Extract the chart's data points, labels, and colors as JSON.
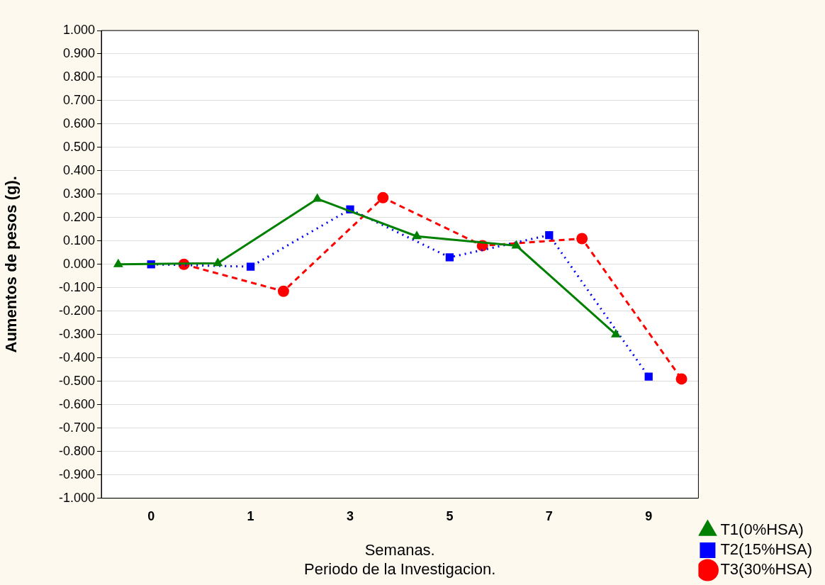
{
  "chart_data": {
    "type": "line",
    "xlabel": "Semanas.\nPeriodo de la Investigacion.",
    "ylabel": "Aumentos de pesos (g).",
    "categories": [
      "0",
      "1",
      "3",
      "5",
      "7",
      "9"
    ],
    "series": [
      {
        "name": "T1(0%HSA)",
        "color": "#008000",
        "marker": "triangle",
        "line_style": "solid",
        "values": [
          0,
          0.005,
          0.28,
          0.12,
          0.08,
          -0.3
        ]
      },
      {
        "name": "T2(15%HSA)",
        "color": "#0000ff",
        "marker": "square",
        "line_style": "dotted",
        "values": [
          0,
          -0.01,
          0.235,
          0.03,
          0.125,
          -0.48
        ]
      },
      {
        "name": "T3(30%HSA)",
        "color": "#ff0000",
        "marker": "circle",
        "line_style": "dashed",
        "values": [
          0,
          -0.115,
          0.285,
          0.08,
          0.11,
          -0.49
        ]
      }
    ],
    "ylim": [
      -1,
      1
    ],
    "yticks": [
      {
        "value": -1,
        "label": "-1.000"
      },
      {
        "value": -0.9,
        "label": "-0.900"
      },
      {
        "value": -0.8,
        "label": "-0.800"
      },
      {
        "value": -0.7,
        "label": "-0.700"
      },
      {
        "value": -0.6,
        "label": "-0.600"
      },
      {
        "value": -0.5,
        "label": "-0.500"
      },
      {
        "value": -0.4,
        "label": "-0.400"
      },
      {
        "value": -0.3,
        "label": "-0.300"
      },
      {
        "value": -0.2,
        "label": "-0.200"
      },
      {
        "value": -0.1,
        "label": "-0.100"
      },
      {
        "value": 0,
        "label": "0.000"
      },
      {
        "value": 0.1,
        "label": "0.100"
      },
      {
        "value": 0.2,
        "label": "0.200"
      },
      {
        "value": 0.3,
        "label": "0.300"
      },
      {
        "value": 0.4,
        "label": "0.400"
      },
      {
        "value": 0.5,
        "label": "0.500"
      },
      {
        "value": 0.6,
        "label": "0.600"
      },
      {
        "value": 0.7,
        "label": "0.700"
      },
      {
        "value": 0.8,
        "label": "0.800"
      },
      {
        "value": 0.9,
        "label": "0.900"
      },
      {
        "value": 1,
        "label": "1.000"
      }
    ],
    "grid": "y",
    "legend": "bottom right"
  }
}
